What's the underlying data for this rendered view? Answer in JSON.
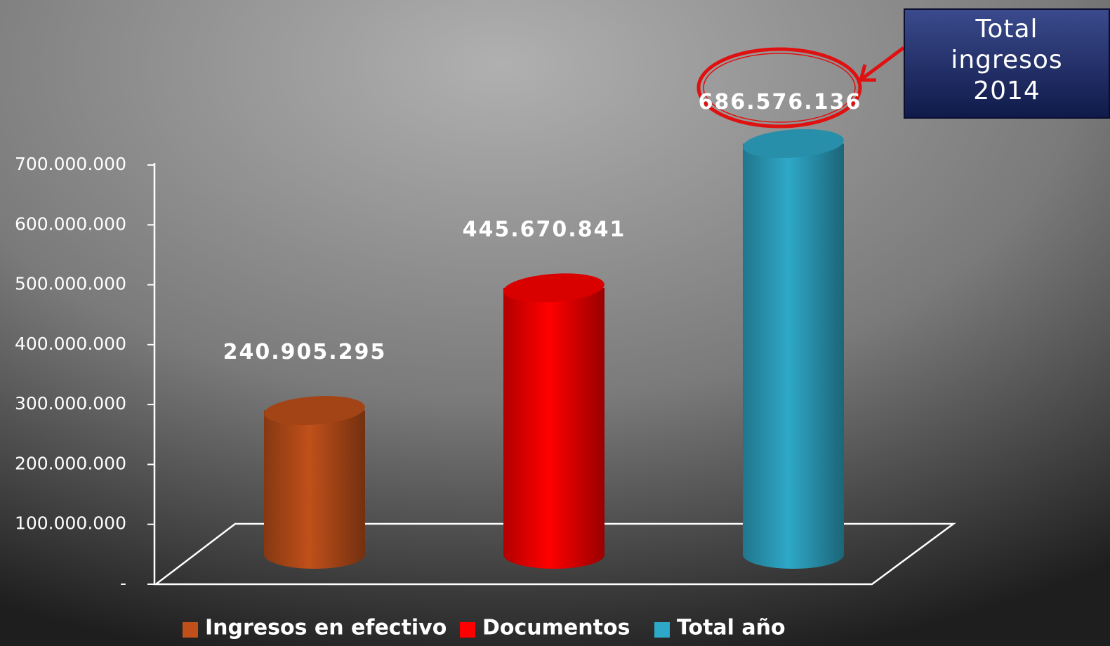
{
  "chart_data": {
    "type": "bar",
    "series": [
      {
        "name": "Ingresos en efectivo",
        "color": "#c0501a",
        "values": [
          240905295
        ],
        "value_labels": [
          "240.905.295"
        ]
      },
      {
        "name": "Documentos",
        "color": "#ff0000",
        "values": [
          445670841
        ],
        "value_labels": [
          "445.670.841"
        ]
      },
      {
        "name": "Total año",
        "color": "#2ea8c8",
        "values": [
          686576136
        ],
        "value_labels": [
          "686.576.136"
        ]
      }
    ],
    "ylim": [
      0,
      700000000
    ],
    "yticks": [
      {
        "value": 0,
        "label": "-"
      },
      {
        "value": 100000000,
        "label": "100.000.000"
      },
      {
        "value": 200000000,
        "label": "200.000.000"
      },
      {
        "value": 300000000,
        "label": "300.000.000"
      },
      {
        "value": 400000000,
        "label": "400.000.000"
      },
      {
        "value": 500000000,
        "label": "500.000.000"
      },
      {
        "value": 600000000,
        "label": "600.000.000"
      },
      {
        "value": 700000000,
        "label": "700.000.000"
      }
    ],
    "annotation": "Total ingresos 2014"
  }
}
